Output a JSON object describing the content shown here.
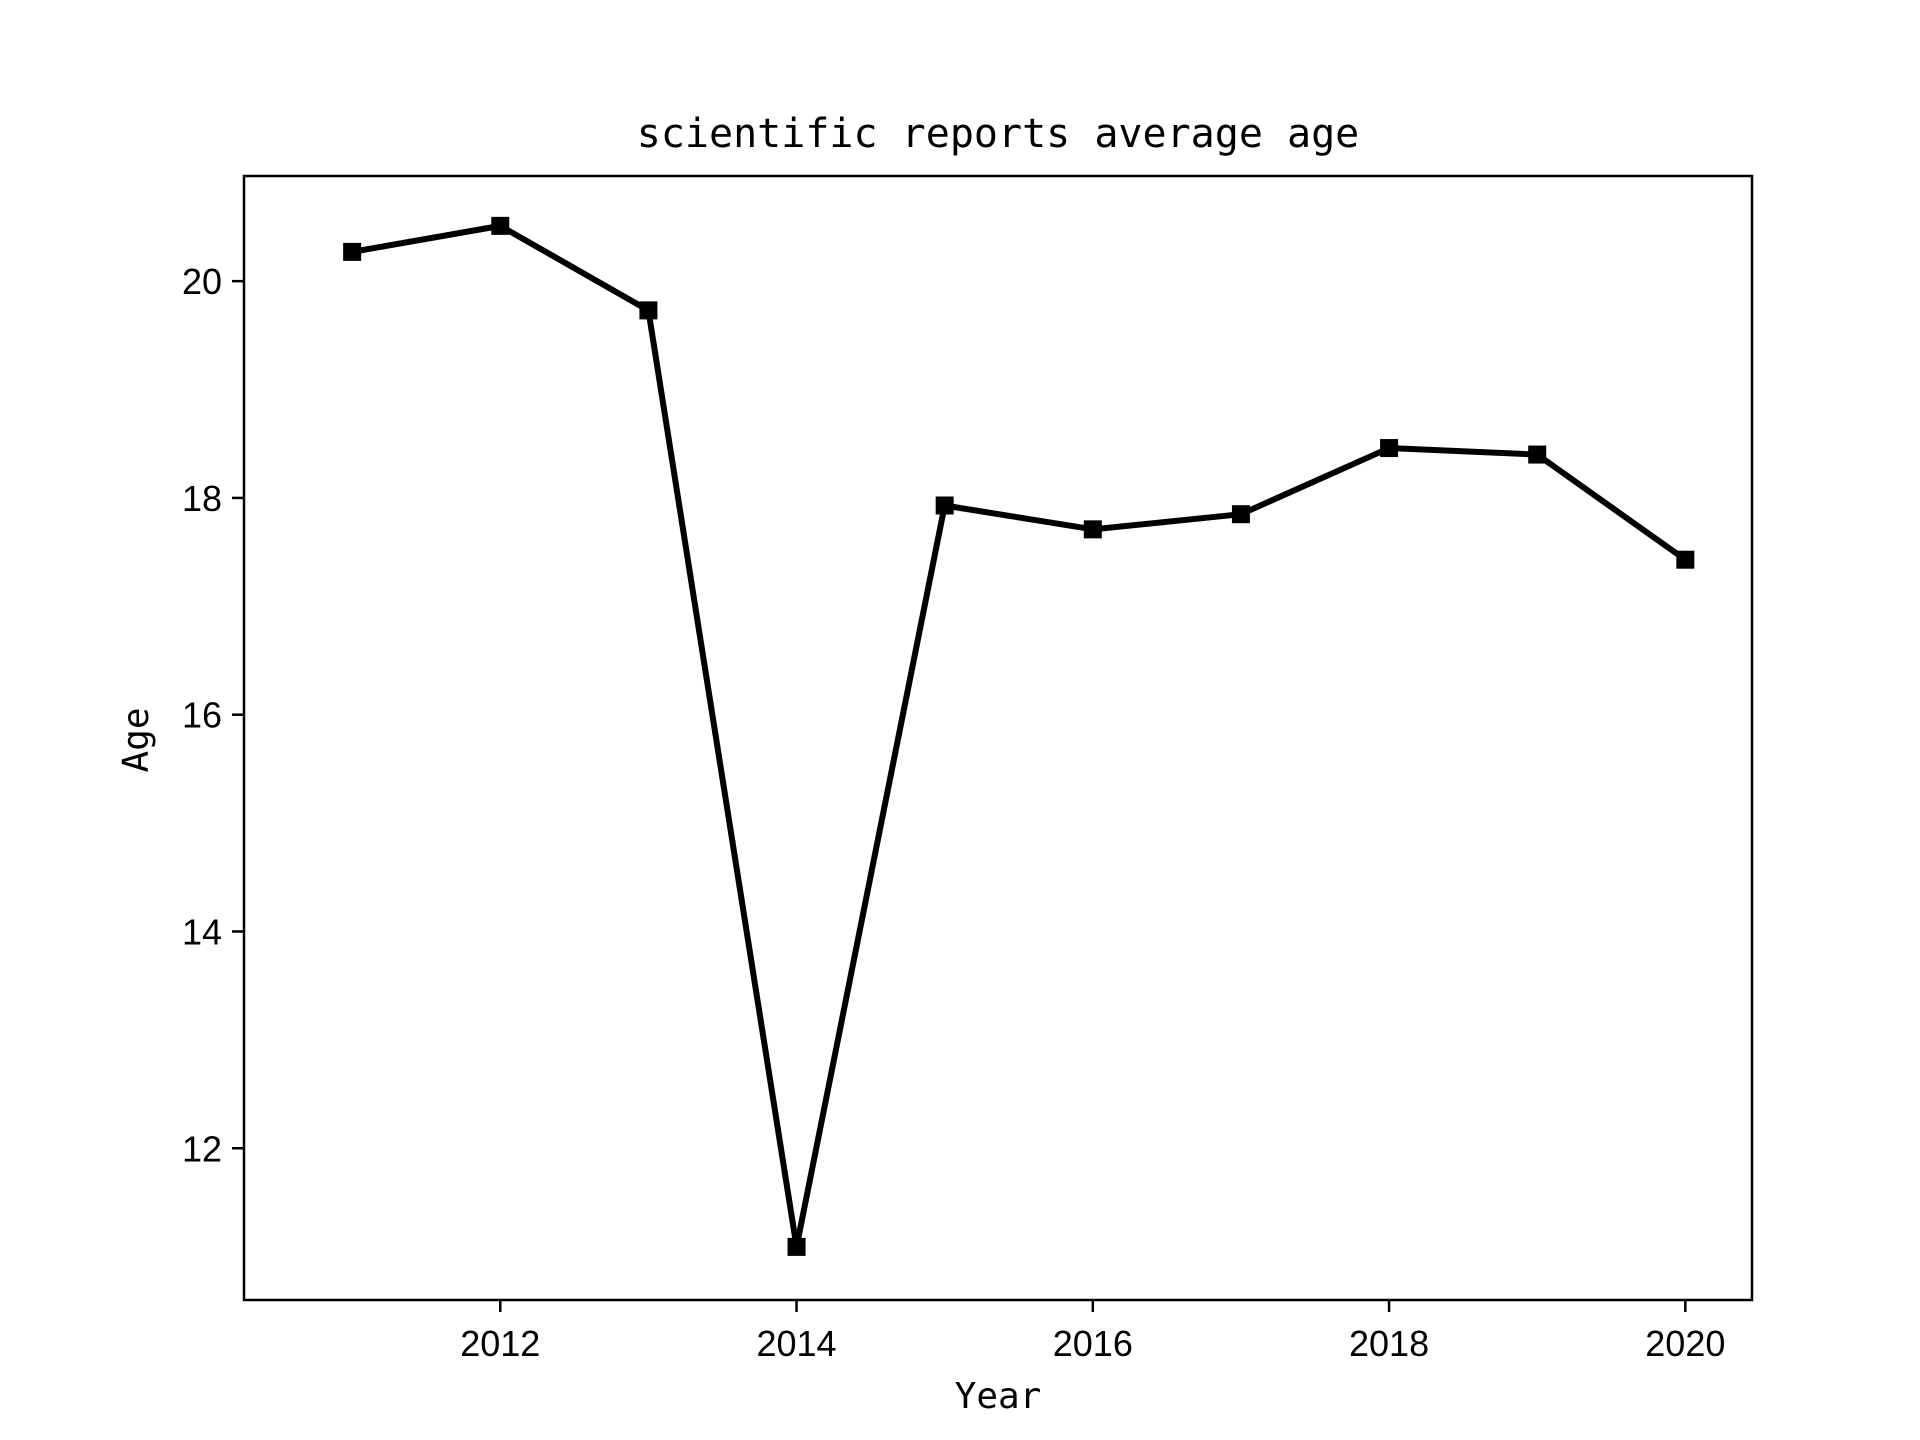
{
  "chart_data": {
    "type": "line",
    "title": "scientific reports average age",
    "xlabel": "Year",
    "ylabel": "Age",
    "x": [
      2011,
      2012,
      2013,
      2014,
      2015,
      2016,
      2017,
      2018,
      2019,
      2020
    ],
    "series": [
      {
        "values": [
          20.27,
          20.51,
          19.73,
          11.09,
          17.93,
          17.71,
          17.85,
          18.46,
          18.4,
          17.43
        ],
        "color": "#000000",
        "marker": "square"
      }
    ],
    "xlim": [
      2010.27,
      2020.45
    ],
    "ylim": [
      10.6,
      20.97
    ],
    "xticks": [
      2012,
      2014,
      2016,
      2018,
      2020
    ],
    "xtick_labels": [
      "2012",
      "2014",
      "2016",
      "2018",
      "2020"
    ],
    "yticks": [
      12,
      14,
      16,
      18,
      20
    ],
    "ytick_labels": [
      "12",
      "14",
      "16",
      "18",
      "20"
    ],
    "grid": false,
    "legend": "none"
  }
}
